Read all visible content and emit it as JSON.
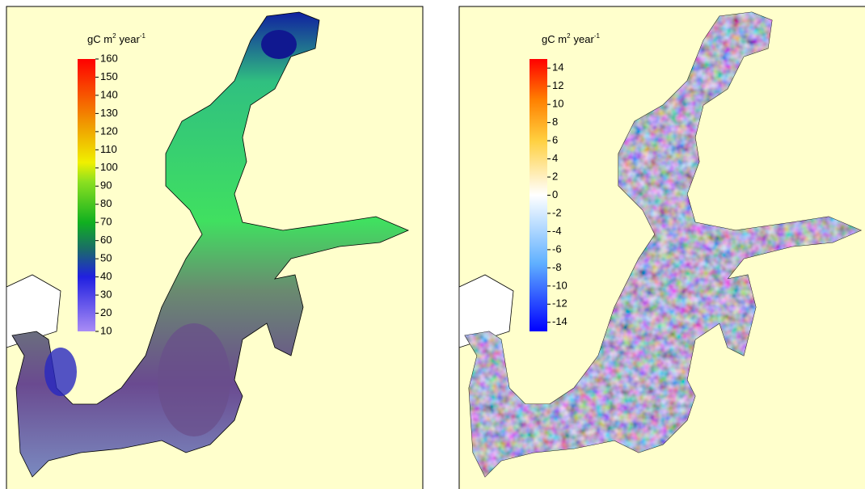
{
  "panels": [
    {
      "unit": {
        "base": "gC m",
        "sup1": "2",
        "mid": "year",
        "sup2": "-1"
      },
      "colorbar_ticks": [
        160,
        150,
        140,
        130,
        120,
        110,
        100,
        90,
        80,
        70,
        60,
        50,
        40,
        30,
        20,
        10
      ]
    },
    {
      "unit": {
        "base": "gC m",
        "sup1": "2",
        "mid": "year",
        "sup2": "-1"
      },
      "colorbar_ticks": [
        14,
        12,
        10,
        8,
        6,
        4,
        2,
        0,
        -2,
        -4,
        -6,
        -8,
        -10,
        -12,
        -14
      ]
    }
  ]
}
